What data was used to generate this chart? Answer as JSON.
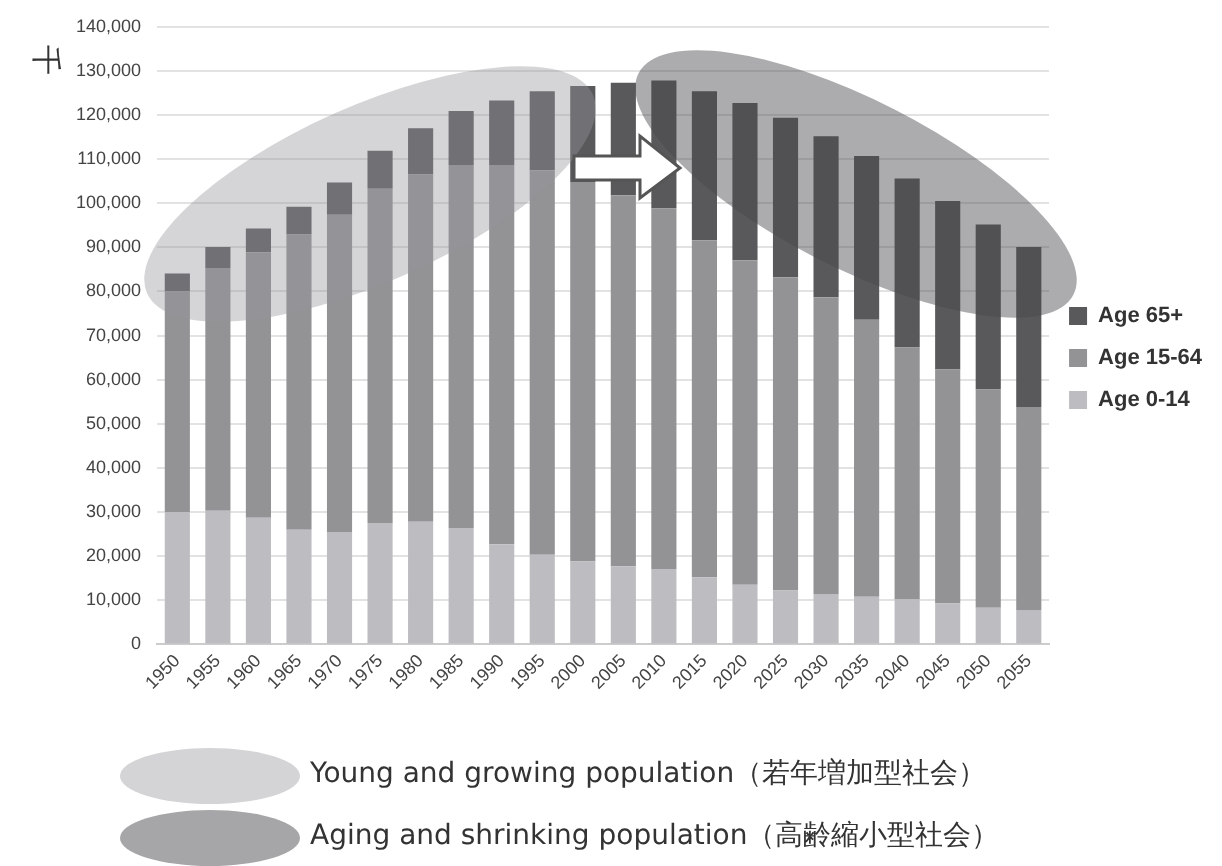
{
  "chart_data": {
    "type": "bar",
    "stacked": true,
    "ylabel": "千",
    "categories": [
      "1950",
      "1955",
      "1960",
      "1965",
      "1970",
      "1975",
      "1980",
      "1985",
      "1990",
      "1995",
      "2000",
      "2005",
      "2010",
      "2015",
      "2020",
      "2025",
      "2030",
      "2035",
      "2040",
      "2045",
      "2050",
      "2055"
    ],
    "series": [
      {
        "name": "Age 0-14",
        "color": "#bdbdc1",
        "values": [
          30000,
          30300,
          28700,
          26000,
          25500,
          27500,
          27800,
          26400,
          22700,
          20300,
          18800,
          17700,
          17100,
          15200,
          13500,
          12200,
          11400,
          10800,
          10200,
          9300,
          8300,
          7800
        ]
      },
      {
        "name": "Age 15-64",
        "color": "#939396",
        "values": [
          50000,
          55000,
          60200,
          66900,
          71900,
          75800,
          78700,
          82300,
          86000,
          87200,
          86000,
          84100,
          81700,
          76400,
          73600,
          71000,
          67300,
          62800,
          57100,
          53000,
          49500,
          46000
        ]
      },
      {
        "name": "Age 65+",
        "color": "#59595c",
        "values": [
          4100,
          4800,
          5400,
          6300,
          7300,
          8600,
          10500,
          12200,
          14600,
          17900,
          21800,
          25500,
          29000,
          33800,
          35600,
          36200,
          36500,
          37100,
          38300,
          38200,
          37400,
          36300
        ]
      }
    ],
    "ylim": [
      0,
      140000
    ],
    "yticks": [
      0,
      {
        "value": 10000,
        "label": "10,000"
      },
      {
        "value": 20000,
        "label": "20,000"
      },
      {
        "value": 30000,
        "label": "30,000"
      },
      {
        "value": 40000,
        "label": "40,000"
      },
      {
        "value": 50000,
        "label": "50,000"
      },
      {
        "value": 60000,
        "label": "60,000"
      },
      {
        "value": 70000,
        "label": "70,000"
      },
      {
        "value": 80000,
        "label": "80,000"
      },
      {
        "value": 90000,
        "label": "90,000"
      },
      {
        "value": 100000,
        "label": "100,000"
      },
      {
        "value": 110000,
        "label": "110,000"
      },
      {
        "value": 120000,
        "label": "120,000"
      },
      {
        "value": 130000,
        "label": "130,000"
      },
      {
        "value": 140000,
        "label": "140,000"
      }
    ],
    "grid": "y",
    "legend": "right",
    "annotations": [
      "Young and growing population（若年増加型社会）",
      "Aging and shrinking population（高齢縮小型社会）"
    ]
  }
}
